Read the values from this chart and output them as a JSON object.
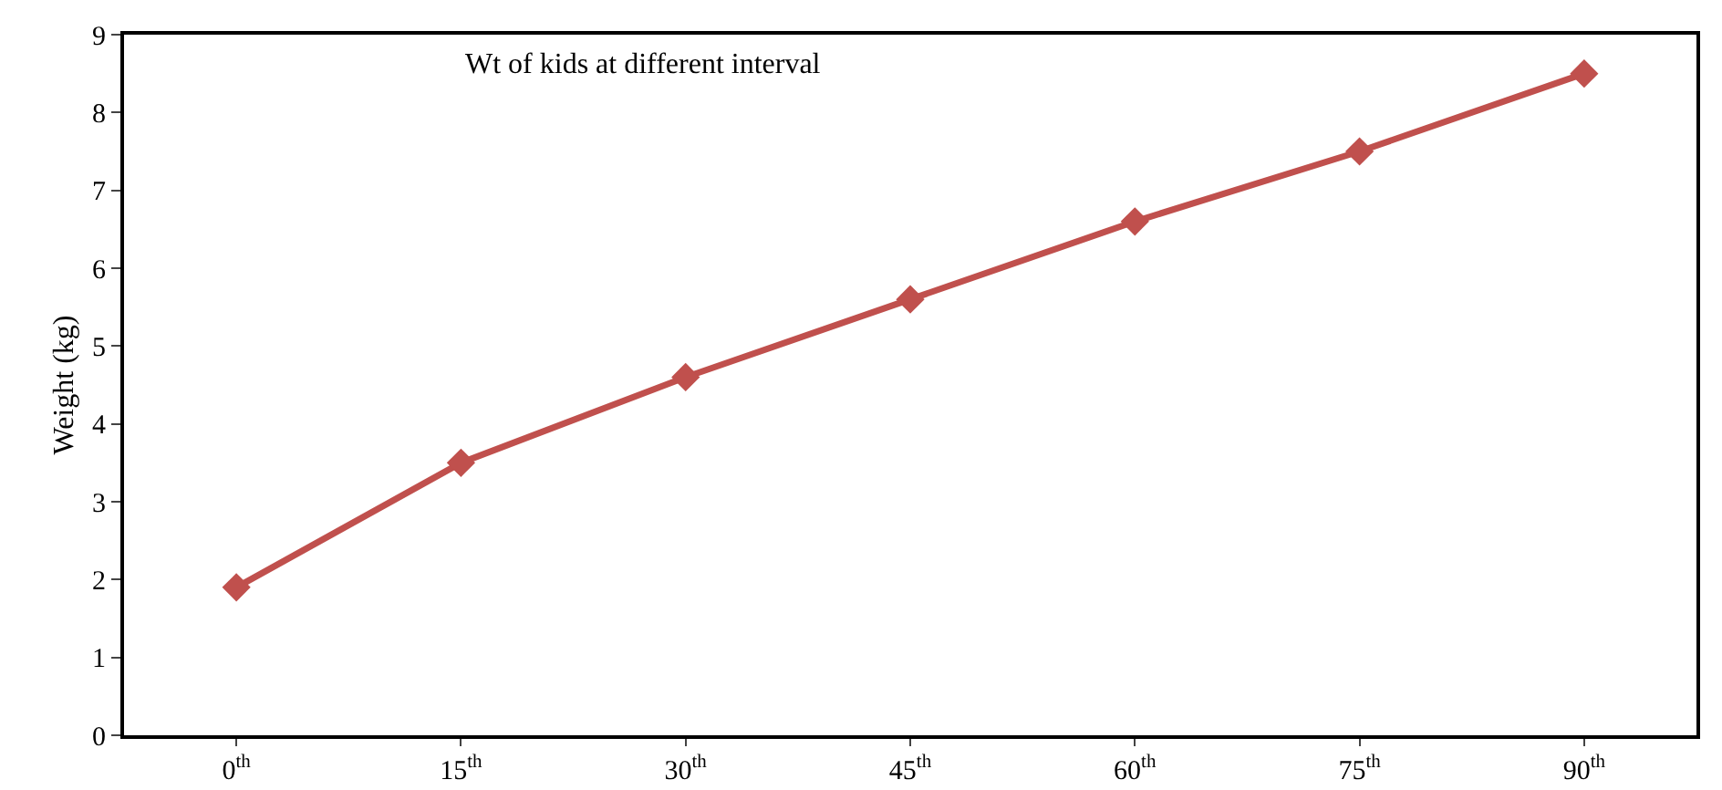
{
  "chart_data": {
    "type": "line",
    "title": "Wt of kids at different interval",
    "ylabel": "Weight (kg)",
    "categories": [
      "0$^{th}$",
      "15$^{th}$",
      "30$^{th}$",
      "45$^{th}$",
      "60$^{th}$",
      "75$^{th}$",
      "90$^{th}$"
    ],
    "series": [
      {
        "color": "#c0504d",
        "values": [
          1.9,
          3.5,
          4.6,
          5.6,
          6.6,
          7.5,
          8.5
        ]
      }
    ],
    "ylim": [
      0,
      9
    ],
    "yticks": [
      0,
      1,
      2,
      3,
      4,
      5,
      6,
      7,
      8,
      9
    ],
    "grid": false,
    "marker": "diamond",
    "line_style": "solid"
  }
}
